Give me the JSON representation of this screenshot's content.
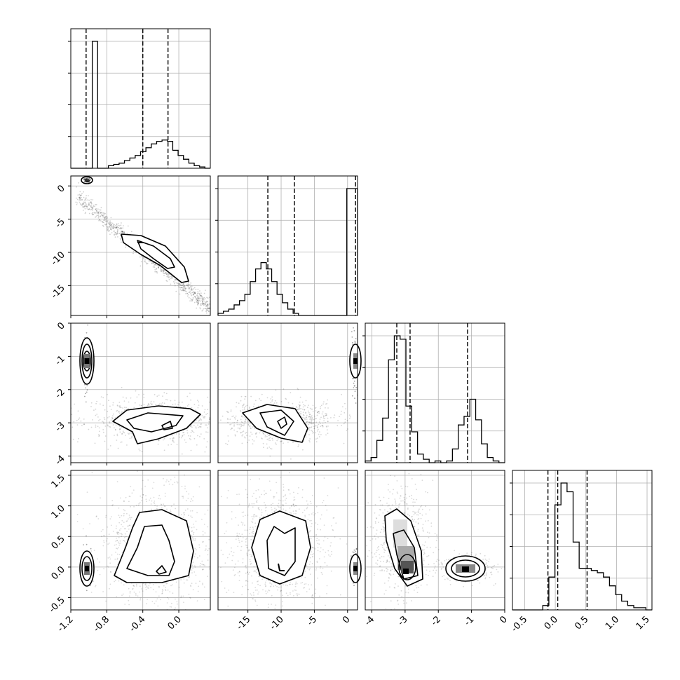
{
  "chart_data": {
    "type": "corner",
    "parameters": 4,
    "axis_ranges": [
      [
        -1.2,
        0.35
      ],
      [
        -19.5,
        1.5
      ],
      [
        -4.2,
        0.0
      ],
      [
        -0.7,
        1.58
      ]
    ],
    "tick_labels": {
      "param0": [
        "-1.2",
        "-0.8",
        "-0.4",
        "0.0"
      ],
      "param1": [
        "-15",
        "-10",
        "-5",
        "0"
      ],
      "param2": [
        "-4",
        "-3",
        "-2",
        "-1",
        "0"
      ],
      "param3": [
        "-0.5",
        "0.0",
        "0.5",
        "1.0",
        "1.5"
      ]
    },
    "quantile_lines": [
      [
        -1.03,
        -0.4,
        -0.12
      ],
      [
        -12.0,
        -8.0,
        1.2
      ],
      [
        -3.25,
        -2.85,
        -1.12
      ],
      [
        -0.12,
        0.04,
        0.52
      ]
    ],
    "histograms": [
      {
        "edges_min": -1.2,
        "edges_max": 0.35,
        "counts": [
          0,
          0,
          0,
          0,
          99,
          0,
          0,
          2,
          3,
          4,
          6,
          8,
          10,
          13,
          16,
          19,
          21,
          22,
          21,
          14,
          10,
          7,
          4,
          2,
          1,
          0
        ]
      },
      {
        "edges_min": -19.5,
        "edges_max": 1.5,
        "counts": [
          1,
          2,
          3,
          5,
          7,
          10,
          16,
          22,
          25,
          22,
          16,
          10,
          6,
          3,
          1,
          0,
          0,
          0,
          0,
          0,
          0,
          0,
          0,
          0,
          60,
          60
        ]
      },
      {
        "edges_min": -4.2,
        "edges_max": 0.0,
        "counts": [
          1,
          3,
          13,
          26,
          60,
          74,
          72,
          33,
          18,
          5,
          2,
          0,
          1,
          0,
          1,
          8,
          22,
          27,
          37,
          25,
          11,
          3,
          1,
          0
        ]
      },
      {
        "edges_min": -0.7,
        "edges_max": 1.58,
        "counts": [
          0,
          0,
          0,
          0,
          0,
          2,
          15,
          48,
          58,
          54,
          31,
          19,
          19,
          18,
          17,
          15,
          11,
          7,
          4,
          2,
          1,
          1,
          0
        ]
      }
    ],
    "grid": true,
    "title": "",
    "legend": "none"
  }
}
